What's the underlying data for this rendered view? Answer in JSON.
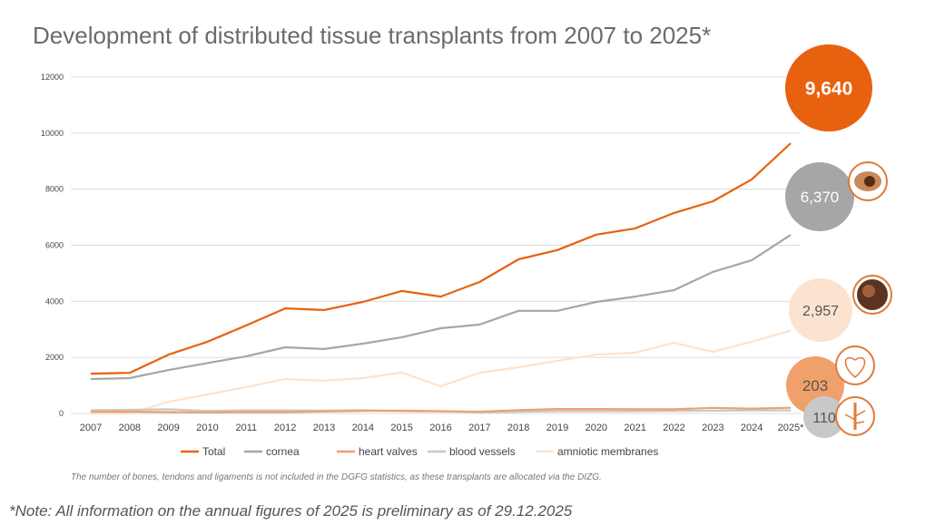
{
  "chart_data": {
    "type": "line",
    "title": "Development of distributed tissue transplants from 2007 to 2025*",
    "xlabel": "",
    "ylabel": "",
    "ylim": [
      0,
      12000
    ],
    "yticks": [
      "0",
      "2000",
      "4000",
      "6000",
      "8000",
      "10000",
      "12000"
    ],
    "grid": true,
    "legend_position": "bottom",
    "categories": [
      "2007",
      "2008",
      "2009",
      "2010",
      "2011",
      "2012",
      "2013",
      "2014",
      "2015",
      "2016",
      "2017",
      "2018",
      "2019",
      "2020",
      "2021",
      "2022",
      "2023",
      "2024",
      "2025*"
    ],
    "series": [
      {
        "name": "Total",
        "color": "#e8610e",
        "values": [
          1420,
          1450,
          2100,
          2560,
          3140,
          3750,
          3690,
          3980,
          4370,
          4170,
          4690,
          5500,
          5830,
          6380,
          6600,
          7150,
          7570,
          8350,
          9640
        ]
      },
      {
        "name": "cornea",
        "color": "#a6a6a6",
        "values": [
          1230,
          1260,
          1550,
          1800,
          2040,
          2360,
          2300,
          2490,
          2720,
          3040,
          3170,
          3660,
          3660,
          3980,
          4170,
          4400,
          5050,
          5470,
          6370
        ]
      },
      {
        "name": "heart valves",
        "color": "#f0a06a",
        "values": [
          60,
          60,
          50,
          40,
          50,
          50,
          70,
          90,
          100,
          80,
          60,
          120,
          160,
          160,
          150,
          150,
          200,
          170,
          203
        ]
      },
      {
        "name": "blood vessels",
        "color": "#c8c8c8",
        "values": [
          120,
          130,
          150,
          90,
          110,
          110,
          100,
          120,
          80,
          70,
          50,
          60,
          80,
          80,
          80,
          90,
          100,
          110,
          110
        ]
      },
      {
        "name": "amniotic membranes",
        "color": "#fbe3d0",
        "values": [
          0,
          0,
          420,
          680,
          940,
          1230,
          1170,
          1260,
          1460,
          970,
          1450,
          1650,
          1880,
          2100,
          2170,
          2520,
          2200,
          2560,
          2957
        ]
      }
    ],
    "callouts": [
      {
        "label": "9,640",
        "series": "Total",
        "color": "#e8610e",
        "text_color": "#ffffff",
        "icon": null
      },
      {
        "label": "6,370",
        "series": "cornea",
        "color": "#a6a6a6",
        "text_color": "#ffffff",
        "icon": "eye-icon"
      },
      {
        "label": "2,957",
        "series": "amniotic membranes",
        "color": "#fbe3d0",
        "text_color": "#555555",
        "icon": "fetus-icon"
      },
      {
        "label": "203",
        "series": "heart valves",
        "color": "#f0a06a",
        "text_color": "#555555",
        "icon": "heart-icon"
      },
      {
        "label": "110",
        "series": "blood vessels",
        "color": "#c8c8c8",
        "text_color": "#555555",
        "icon": "blood-vessel-icon"
      }
    ],
    "footnote": "The number of bones, tendons and ligaments is not included in the DGFG statistics, as these transplants are allocated via the DIZG.",
    "note": "*Note: All information on the annual figures of 2025 is preliminary as of 29.12.2025"
  }
}
